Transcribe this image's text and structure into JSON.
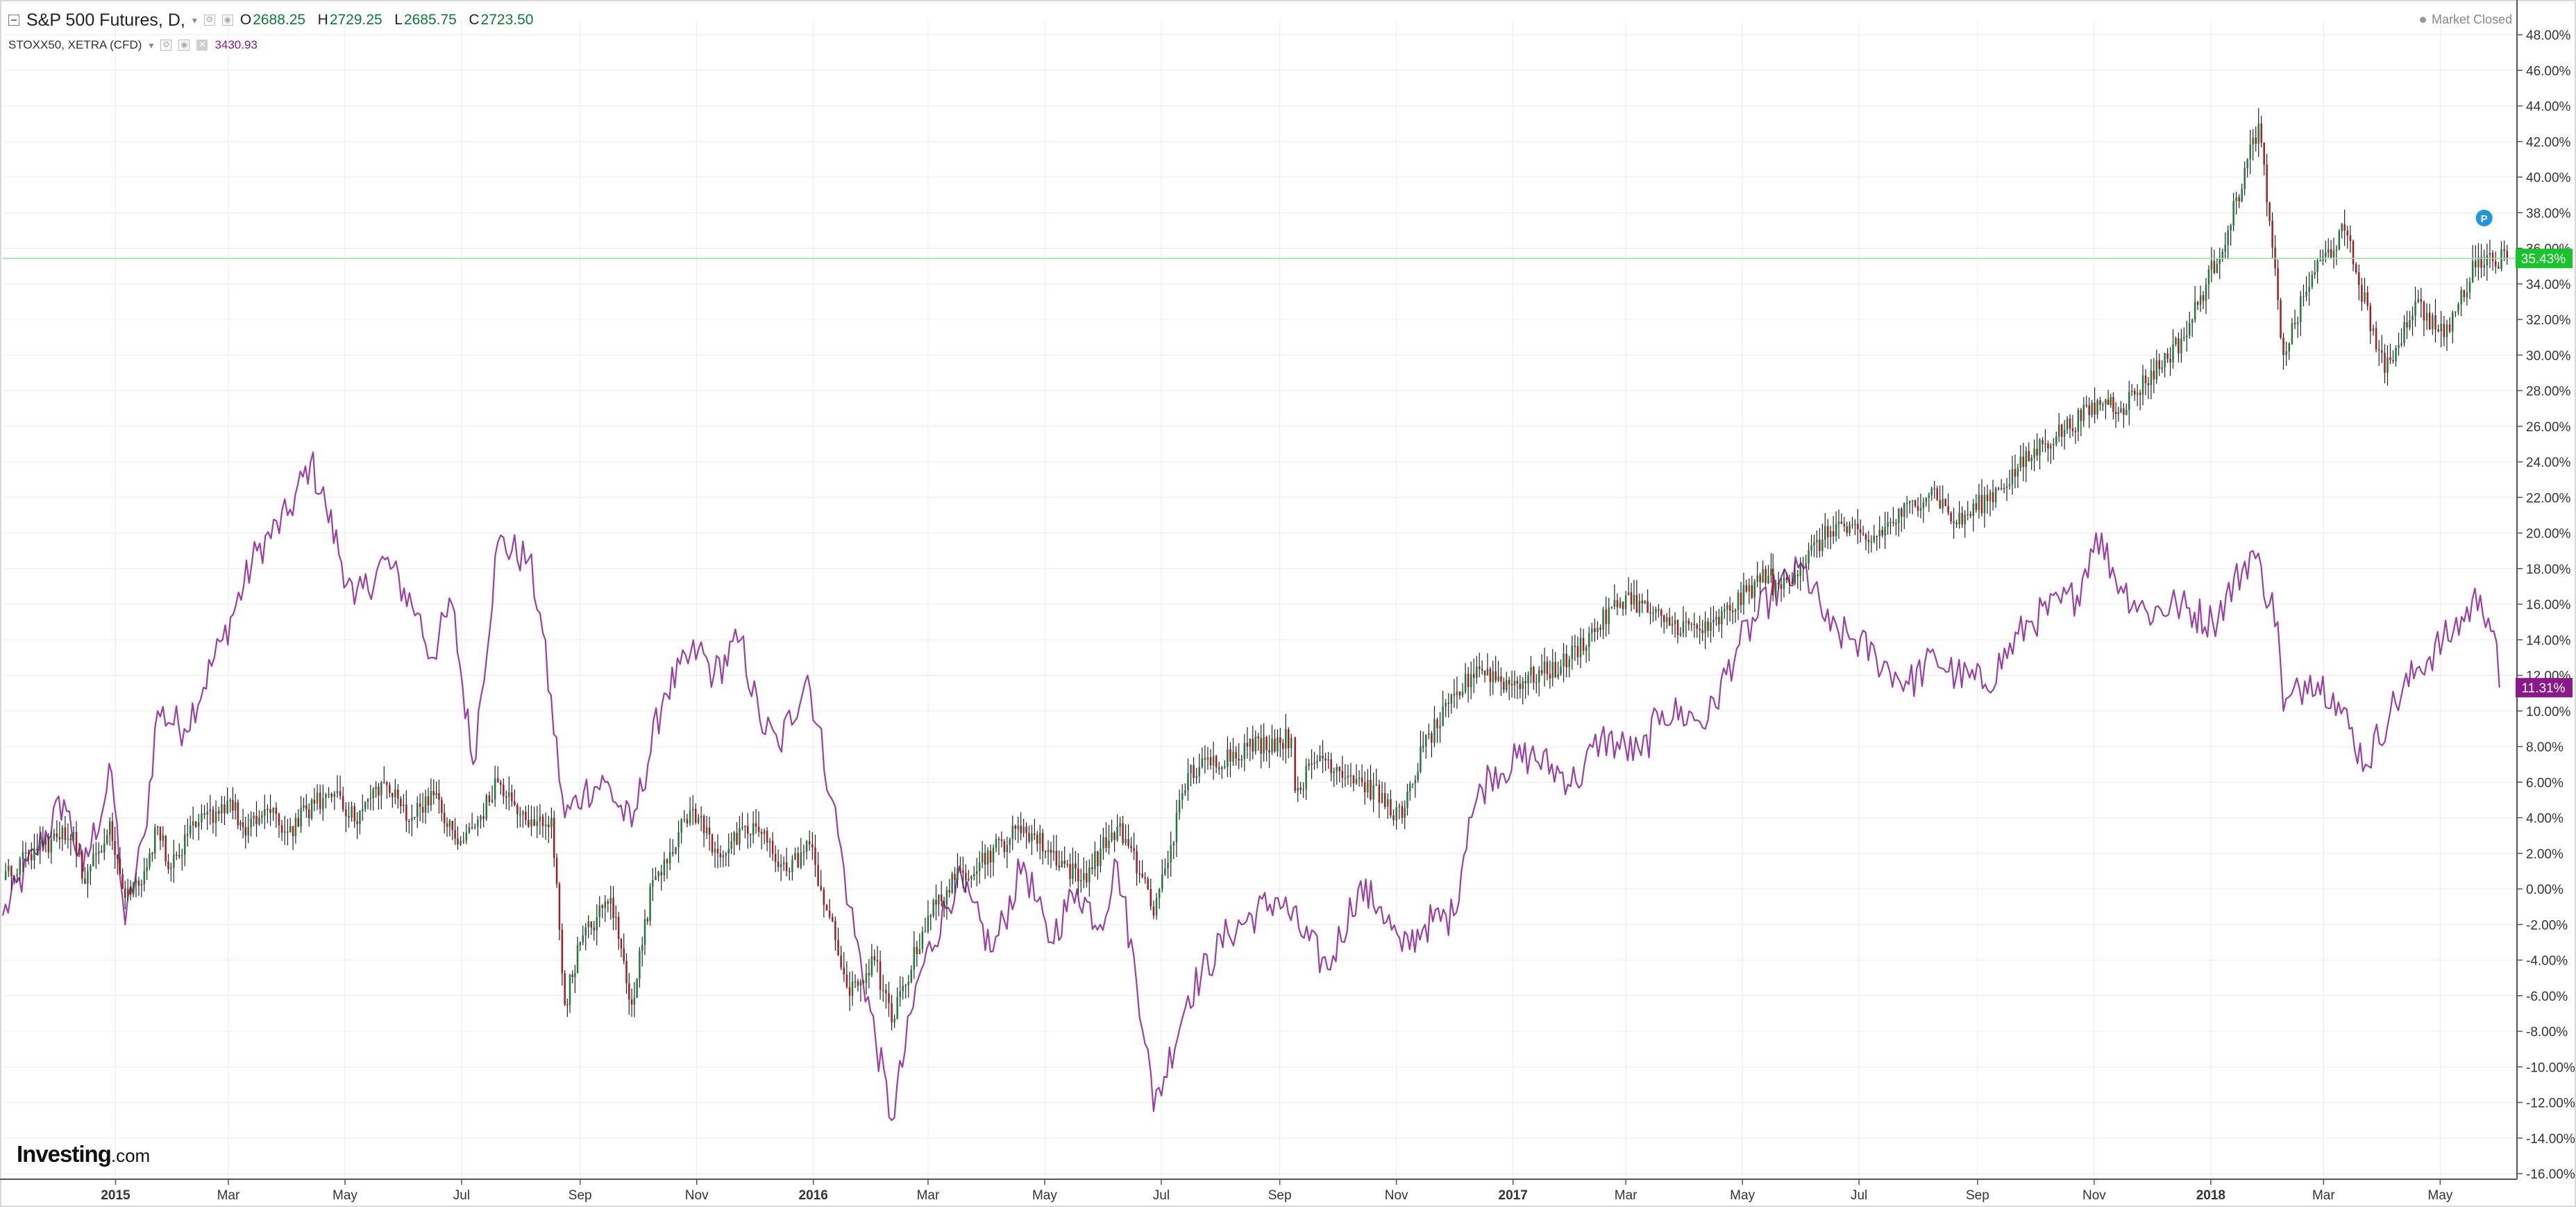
{
  "legend": {
    "primary_name": "S&P 500 Futures, D,",
    "open_key": "O",
    "open": "2688.25",
    "high_key": "H",
    "high": "2729.25",
    "low_key": "L",
    "low": "2685.75",
    "close_key": "C",
    "close": "2723.50",
    "secondary_name": "STOXX50, XETRA (CFD)",
    "secondary_value": "3430.93"
  },
  "status": {
    "market": "Market Closed"
  },
  "branding": {
    "logo_main": "Investing",
    "logo_suffix": ".com"
  },
  "colors": {
    "up": "#1f7a3a",
    "down": "#a8181e",
    "stoxx_line": "#9b3fa6",
    "sp_badge": "#17c42c",
    "stoxx_badge": "#8a1a8a",
    "marker": "#1e96e0",
    "grid": "#ececec"
  },
  "chart_data": {
    "type": "line",
    "y_unit": "%",
    "ylim": [
      -16,
      49
    ],
    "y_ticks": [
      "48.00%",
      "46.00%",
      "44.00%",
      "42.00%",
      "40.00%",
      "38.00%",
      "36.00%",
      "34.00%",
      "32.00%",
      "30.00%",
      "28.00%",
      "26.00%",
      "24.00%",
      "22.00%",
      "20.00%",
      "18.00%",
      "16.00%",
      "14.00%",
      "12.00%",
      "10.00%",
      "8.00%",
      "6.00%",
      "4.00%",
      "2.00%",
      "0.00%",
      "-2.00%",
      "-4.00%",
      "-6.00%",
      "-8.00%",
      "-10.00%",
      "-12.00%",
      "-14.00%",
      "-16.00%"
    ],
    "x_ticks": [
      {
        "label": "2015",
        "date": "2015-01-01",
        "year": true
      },
      {
        "label": "Mar",
        "date": "2015-03-01"
      },
      {
        "label": "May",
        "date": "2015-05-01"
      },
      {
        "label": "Jul",
        "date": "2015-07-01"
      },
      {
        "label": "Sep",
        "date": "2015-09-01"
      },
      {
        "label": "Nov",
        "date": "2015-11-01"
      },
      {
        "label": "2016",
        "date": "2016-01-01",
        "year": true
      },
      {
        "label": "Mar",
        "date": "2016-03-01"
      },
      {
        "label": "May",
        "date": "2016-05-01"
      },
      {
        "label": "Jul",
        "date": "2016-07-01"
      },
      {
        "label": "Sep",
        "date": "2016-09-01"
      },
      {
        "label": "Nov",
        "date": "2016-11-01"
      },
      {
        "label": "2017",
        "date": "2017-01-01",
        "year": true
      },
      {
        "label": "Mar",
        "date": "2017-03-01"
      },
      {
        "label": "May",
        "date": "2017-05-01"
      },
      {
        "label": "Jul",
        "date": "2017-07-01"
      },
      {
        "label": "Sep",
        "date": "2017-09-01"
      },
      {
        "label": "Nov",
        "date": "2017-11-01"
      },
      {
        "label": "2018",
        "date": "2018-01-01",
        "year": true
      },
      {
        "label": "Mar",
        "date": "2018-03-01"
      },
      {
        "label": "May",
        "date": "2018-05-01"
      }
    ],
    "x_range": [
      "2014-11-03",
      "2018-06-08"
    ],
    "series": [
      {
        "name": "S&P 500 Futures, D,",
        "style": "candlestick",
        "last_label": "35.43%",
        "points": [
          [
            "2014-11-03",
            0.5
          ],
          [
            "2014-11-24",
            2.5
          ],
          [
            "2014-12-10",
            3.2
          ],
          [
            "2014-12-16",
            0.3
          ],
          [
            "2014-12-29",
            3.8
          ],
          [
            "2015-01-06",
            -0.5
          ],
          [
            "2015-01-16",
            1.0
          ],
          [
            "2015-01-23",
            3.5
          ],
          [
            "2015-01-30",
            1.2
          ],
          [
            "2015-02-12",
            3.5
          ],
          [
            "2015-03-02",
            5.0
          ],
          [
            "2015-03-10",
            3.0
          ],
          [
            "2015-03-20",
            4.5
          ],
          [
            "2015-04-01",
            3.2
          ],
          [
            "2015-04-15",
            4.8
          ],
          [
            "2015-04-27",
            5.5
          ],
          [
            "2015-05-06",
            3.8
          ],
          [
            "2015-05-20",
            6.0
          ],
          [
            "2015-06-05",
            4.0
          ],
          [
            "2015-06-15",
            5.5
          ],
          [
            "2015-06-29",
            2.5
          ],
          [
            "2015-07-08",
            3.5
          ],
          [
            "2015-07-20",
            6.0
          ],
          [
            "2015-08-05",
            3.5
          ],
          [
            "2015-08-17",
            4.0
          ],
          [
            "2015-08-24",
            -6.5
          ],
          [
            "2015-09-01",
            -3.0
          ],
          [
            "2015-09-17",
            -0.5
          ],
          [
            "2015-09-28",
            -6.5
          ],
          [
            "2015-10-09",
            0.5
          ],
          [
            "2015-10-30",
            4.5
          ],
          [
            "2015-11-12",
            2.0
          ],
          [
            "2015-12-02",
            3.5
          ],
          [
            "2015-12-18",
            1.0
          ],
          [
            "2015-12-30",
            2.5
          ],
          [
            "2016-01-20",
            -6.0
          ],
          [
            "2016-02-02",
            -4.0
          ],
          [
            "2016-02-11",
            -7.5
          ],
          [
            "2016-03-01",
            -1.5
          ],
          [
            "2016-03-15",
            0.5
          ],
          [
            "2016-04-20",
            3.5
          ],
          [
            "2016-05-20",
            0.5
          ],
          [
            "2016-06-08",
            3.5
          ],
          [
            "2016-06-24",
            0.0
          ],
          [
            "2016-06-27",
            -1.5
          ],
          [
            "2016-07-15",
            6.5
          ],
          [
            "2016-08-15",
            8.0
          ],
          [
            "2016-09-07",
            8.5
          ],
          [
            "2016-09-09",
            5.5
          ],
          [
            "2016-09-22",
            7.5
          ],
          [
            "2016-10-14",
            6.0
          ],
          [
            "2016-11-04",
            4.0
          ],
          [
            "2016-11-15",
            8.0
          ],
          [
            "2016-12-13",
            12.5
          ],
          [
            "2016-12-30",
            11.5
          ],
          [
            "2017-01-26",
            12.5
          ],
          [
            "2017-03-01",
            16.5
          ],
          [
            "2017-03-21",
            15.0
          ],
          [
            "2017-04-13",
            14.5
          ],
          [
            "2017-05-16",
            18.0
          ],
          [
            "2017-05-17",
            16.5
          ],
          [
            "2017-06-19",
            20.5
          ],
          [
            "2017-07-06",
            19.5
          ],
          [
            "2017-08-08",
            22.5
          ],
          [
            "2017-08-21",
            20.5
          ],
          [
            "2017-09-12",
            22.5
          ],
          [
            "2017-10-05",
            25.0
          ],
          [
            "2017-11-07",
            27.5
          ],
          [
            "2017-11-15",
            27.0
          ],
          [
            "2017-12-18",
            31.0
          ],
          [
            "2018-01-10",
            37.0
          ],
          [
            "2018-01-26",
            43.0
          ],
          [
            "2018-02-08",
            30.0
          ],
          [
            "2018-02-23",
            34.5
          ],
          [
            "2018-03-12",
            37.0
          ],
          [
            "2018-04-02",
            29.0
          ],
          [
            "2018-04-18",
            33.0
          ],
          [
            "2018-05-03",
            31.0
          ],
          [
            "2018-05-21",
            35.5
          ],
          [
            "2018-06-05",
            35.43
          ]
        ]
      },
      {
        "name": "STOXX50, XETRA (CFD)",
        "style": "line",
        "last_label": "11.31%",
        "points": [
          [
            "2014-11-03",
            -1.5
          ],
          [
            "2014-11-20",
            2.0
          ],
          [
            "2014-12-05",
            5.0
          ],
          [
            "2014-12-15",
            1.0
          ],
          [
            "2014-12-30",
            6.5
          ],
          [
            "2015-01-06",
            -2.0
          ],
          [
            "2015-01-16",
            3.0
          ],
          [
            "2015-01-23",
            10.0
          ],
          [
            "2015-02-06",
            9.0
          ],
          [
            "2015-02-26",
            14.0
          ],
          [
            "2015-03-16",
            19.0
          ],
          [
            "2015-04-01",
            21.0
          ],
          [
            "2015-04-13",
            24.0
          ],
          [
            "2015-04-21",
            21.5
          ],
          [
            "2015-05-06",
            16.0
          ],
          [
            "2015-05-22",
            18.5
          ],
          [
            "2015-06-08",
            15.5
          ],
          [
            "2015-06-15",
            13.0
          ],
          [
            "2015-06-26",
            16.0
          ],
          [
            "2015-07-07",
            7.0
          ],
          [
            "2015-07-20",
            19.5
          ],
          [
            "2015-08-05",
            18.5
          ],
          [
            "2015-08-11",
            15.5
          ],
          [
            "2015-08-24",
            4.0
          ],
          [
            "2015-09-03",
            5.5
          ],
          [
            "2015-09-14",
            6.0
          ],
          [
            "2015-09-28",
            3.5
          ],
          [
            "2015-10-15",
            11.0
          ],
          [
            "2015-11-02",
            13.5
          ],
          [
            "2015-11-10",
            12.0
          ],
          [
            "2015-11-24",
            14.0
          ],
          [
            "2015-12-04",
            9.5
          ],
          [
            "2015-12-14",
            8.0
          ],
          [
            "2015-12-29",
            12.0
          ],
          [
            "2016-01-11",
            5.0
          ],
          [
            "2016-01-20",
            -1.0
          ],
          [
            "2016-02-11",
            -13.0
          ],
          [
            "2016-02-25",
            -5.0
          ],
          [
            "2016-03-16",
            0.5
          ],
          [
            "2016-04-04",
            -3.5
          ],
          [
            "2016-04-20",
            1.5
          ],
          [
            "2016-05-03",
            -3.0
          ],
          [
            "2016-05-18",
            0.0
          ],
          [
            "2016-05-30",
            -2.0
          ],
          [
            "2016-06-08",
            1.5
          ],
          [
            "2016-06-24",
            -9.0
          ],
          [
            "2016-06-27",
            -12.5
          ],
          [
            "2016-07-15",
            -6.0
          ],
          [
            "2016-08-05",
            -2.5
          ],
          [
            "2016-08-31",
            -0.5
          ],
          [
            "2016-09-26",
            -4.5
          ],
          [
            "2016-10-12",
            0.0
          ],
          [
            "2016-10-24",
            -1.0
          ],
          [
            "2016-11-04",
            -3.5
          ],
          [
            "2016-11-16",
            -2.0
          ],
          [
            "2016-12-01",
            -1.5
          ],
          [
            "2016-12-09",
            4.0
          ],
          [
            "2016-12-20",
            6.5
          ],
          [
            "2017-01-10",
            7.5
          ],
          [
            "2017-02-03",
            6.0
          ],
          [
            "2017-02-16",
            8.5
          ],
          [
            "2017-03-09",
            7.5
          ],
          [
            "2017-03-20",
            10.0
          ],
          [
            "2017-04-13",
            9.5
          ],
          [
            "2017-04-28",
            13.5
          ],
          [
            "2017-05-16",
            16.5
          ],
          [
            "2017-06-02",
            18.0
          ],
          [
            "2017-06-16",
            14.5
          ],
          [
            "2017-06-29",
            14.0
          ],
          [
            "2017-07-10",
            13.0
          ],
          [
            "2017-07-27",
            11.5
          ],
          [
            "2017-08-10",
            13.0
          ],
          [
            "2017-08-21",
            12.0
          ],
          [
            "2017-09-05",
            11.5
          ],
          [
            "2017-09-28",
            15.0
          ],
          [
            "2017-10-23",
            16.5
          ],
          [
            "2017-11-02",
            20.0
          ],
          [
            "2017-11-15",
            17.0
          ],
          [
            "2017-11-29",
            15.5
          ],
          [
            "2017-12-14",
            16.0
          ],
          [
            "2018-01-02",
            15.0
          ],
          [
            "2018-01-23",
            19.0
          ],
          [
            "2018-02-05",
            15.0
          ],
          [
            "2018-02-08",
            10.0
          ],
          [
            "2018-02-22",
            12.0
          ],
          [
            "2018-03-06",
            11.0
          ],
          [
            "2018-03-23",
            7.0
          ],
          [
            "2018-04-05",
            10.0
          ],
          [
            "2018-04-20",
            12.5
          ],
          [
            "2018-05-08",
            14.5
          ],
          [
            "2018-05-22",
            16.5
          ],
          [
            "2018-05-29",
            14.5
          ],
          [
            "2018-06-01",
            11.31
          ]
        ]
      }
    ]
  }
}
